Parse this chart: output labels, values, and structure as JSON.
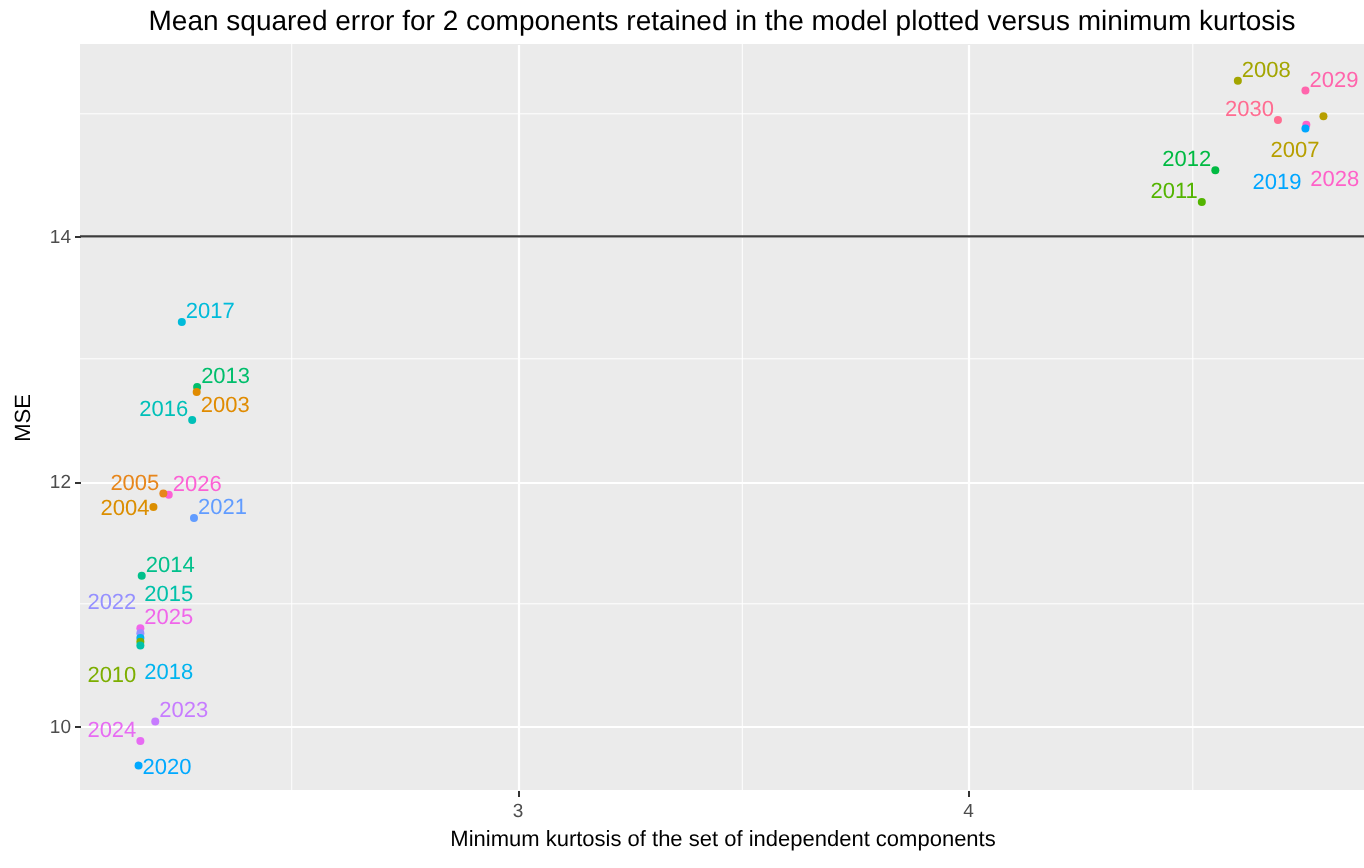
{
  "chart_data": {
    "type": "scatter",
    "title": "Mean squared error for 2 components retained in the model plotted versus minimum kurtosis",
    "xlabel": "Minimum kurtosis of the set of independent components",
    "ylabel": "MSE",
    "xlim": [
      2.03,
      4.88
    ],
    "ylim": [
      9.48,
      15.57
    ],
    "xticks": [
      3,
      4
    ],
    "yticks": [
      10,
      12,
      14
    ],
    "grid": true,
    "marker": "circle",
    "ref_lines": [
      {
        "axis": "y",
        "value": 14,
        "color": "#3c3c3c"
      }
    ],
    "series": [
      {
        "name": "2017",
        "color": "#00bbda",
        "x": [
          2.256
        ],
        "values": [
          13.3
        ]
      },
      {
        "name": "2013",
        "color": "#00be6c",
        "x": [
          2.29
        ],
        "values": [
          12.77
        ]
      },
      {
        "name": "2003",
        "color": "#e08b00",
        "x": [
          2.289
        ],
        "values": [
          12.73
        ]
      },
      {
        "name": "2016",
        "color": "#00c0b8",
        "x": [
          2.279
        ],
        "values": [
          12.5
        ]
      },
      {
        "name": "2026",
        "color": "#fc61d5",
        "x": [
          2.227
        ],
        "values": [
          11.89
        ]
      },
      {
        "name": "2005",
        "color": "#e7861b",
        "x": [
          2.215
        ],
        "values": [
          11.9
        ]
      },
      {
        "name": "2004",
        "color": "#db8e00",
        "x": [
          2.193
        ],
        "values": [
          11.79
        ]
      },
      {
        "name": "2021",
        "color": "#619cff",
        "x": [
          2.283
        ],
        "values": [
          11.7
        ]
      },
      {
        "name": "2014",
        "color": "#00c08b",
        "x": [
          2.167
        ],
        "values": [
          11.23
        ]
      },
      {
        "name": "2025",
        "color": "#f066ea",
        "x": [
          2.164
        ],
        "values": [
          10.8
        ]
      },
      {
        "name": "2022",
        "color": "#9590ff",
        "x": [
          2.164
        ],
        "values": [
          10.76
        ]
      },
      {
        "name": "2018",
        "color": "#00b4ef",
        "x": [
          2.164
        ],
        "values": [
          10.72
        ]
      },
      {
        "name": "2010",
        "color": "#7cae00",
        "x": [
          2.164
        ],
        "values": [
          10.69
        ]
      },
      {
        "name": "2015",
        "color": "#00c1a9",
        "x": [
          2.164
        ],
        "values": [
          10.66
        ]
      },
      {
        "name": "2023",
        "color": "#c77cff",
        "x": [
          2.197
        ],
        "values": [
          10.04
        ]
      },
      {
        "name": "2024",
        "color": "#e76bf3",
        "x": [
          2.164
        ],
        "values": [
          9.88
        ]
      },
      {
        "name": "2020",
        "color": "#00a9ff",
        "x": [
          2.16
        ],
        "values": [
          9.68
        ]
      },
      {
        "name": "2008",
        "color": "#a3a500",
        "x": [
          4.6
        ],
        "values": [
          15.27
        ]
      },
      {
        "name": "2029",
        "color": "#ff65ac",
        "x": [
          4.75
        ],
        "values": [
          15.19
        ]
      },
      {
        "name": "2007",
        "color": "#b79f00",
        "x": [
          4.79
        ],
        "values": [
          14.98
        ]
      },
      {
        "name": "2030",
        "color": "#ff6c91",
        "x": [
          4.689
        ],
        "values": [
          14.95
        ]
      },
      {
        "name": "2028",
        "color": "#ff61c9",
        "x": [
          4.752
        ],
        "values": [
          14.91
        ]
      },
      {
        "name": "2019",
        "color": "#00a6ff",
        "x": [
          4.75
        ],
        "values": [
          14.88
        ]
      },
      {
        "name": "2012",
        "color": "#00ba42",
        "x": [
          4.55
        ],
        "values": [
          14.54
        ]
      },
      {
        "name": "2011",
        "color": "#53b400",
        "x": [
          4.52
        ],
        "values": [
          14.28
        ]
      }
    ]
  }
}
